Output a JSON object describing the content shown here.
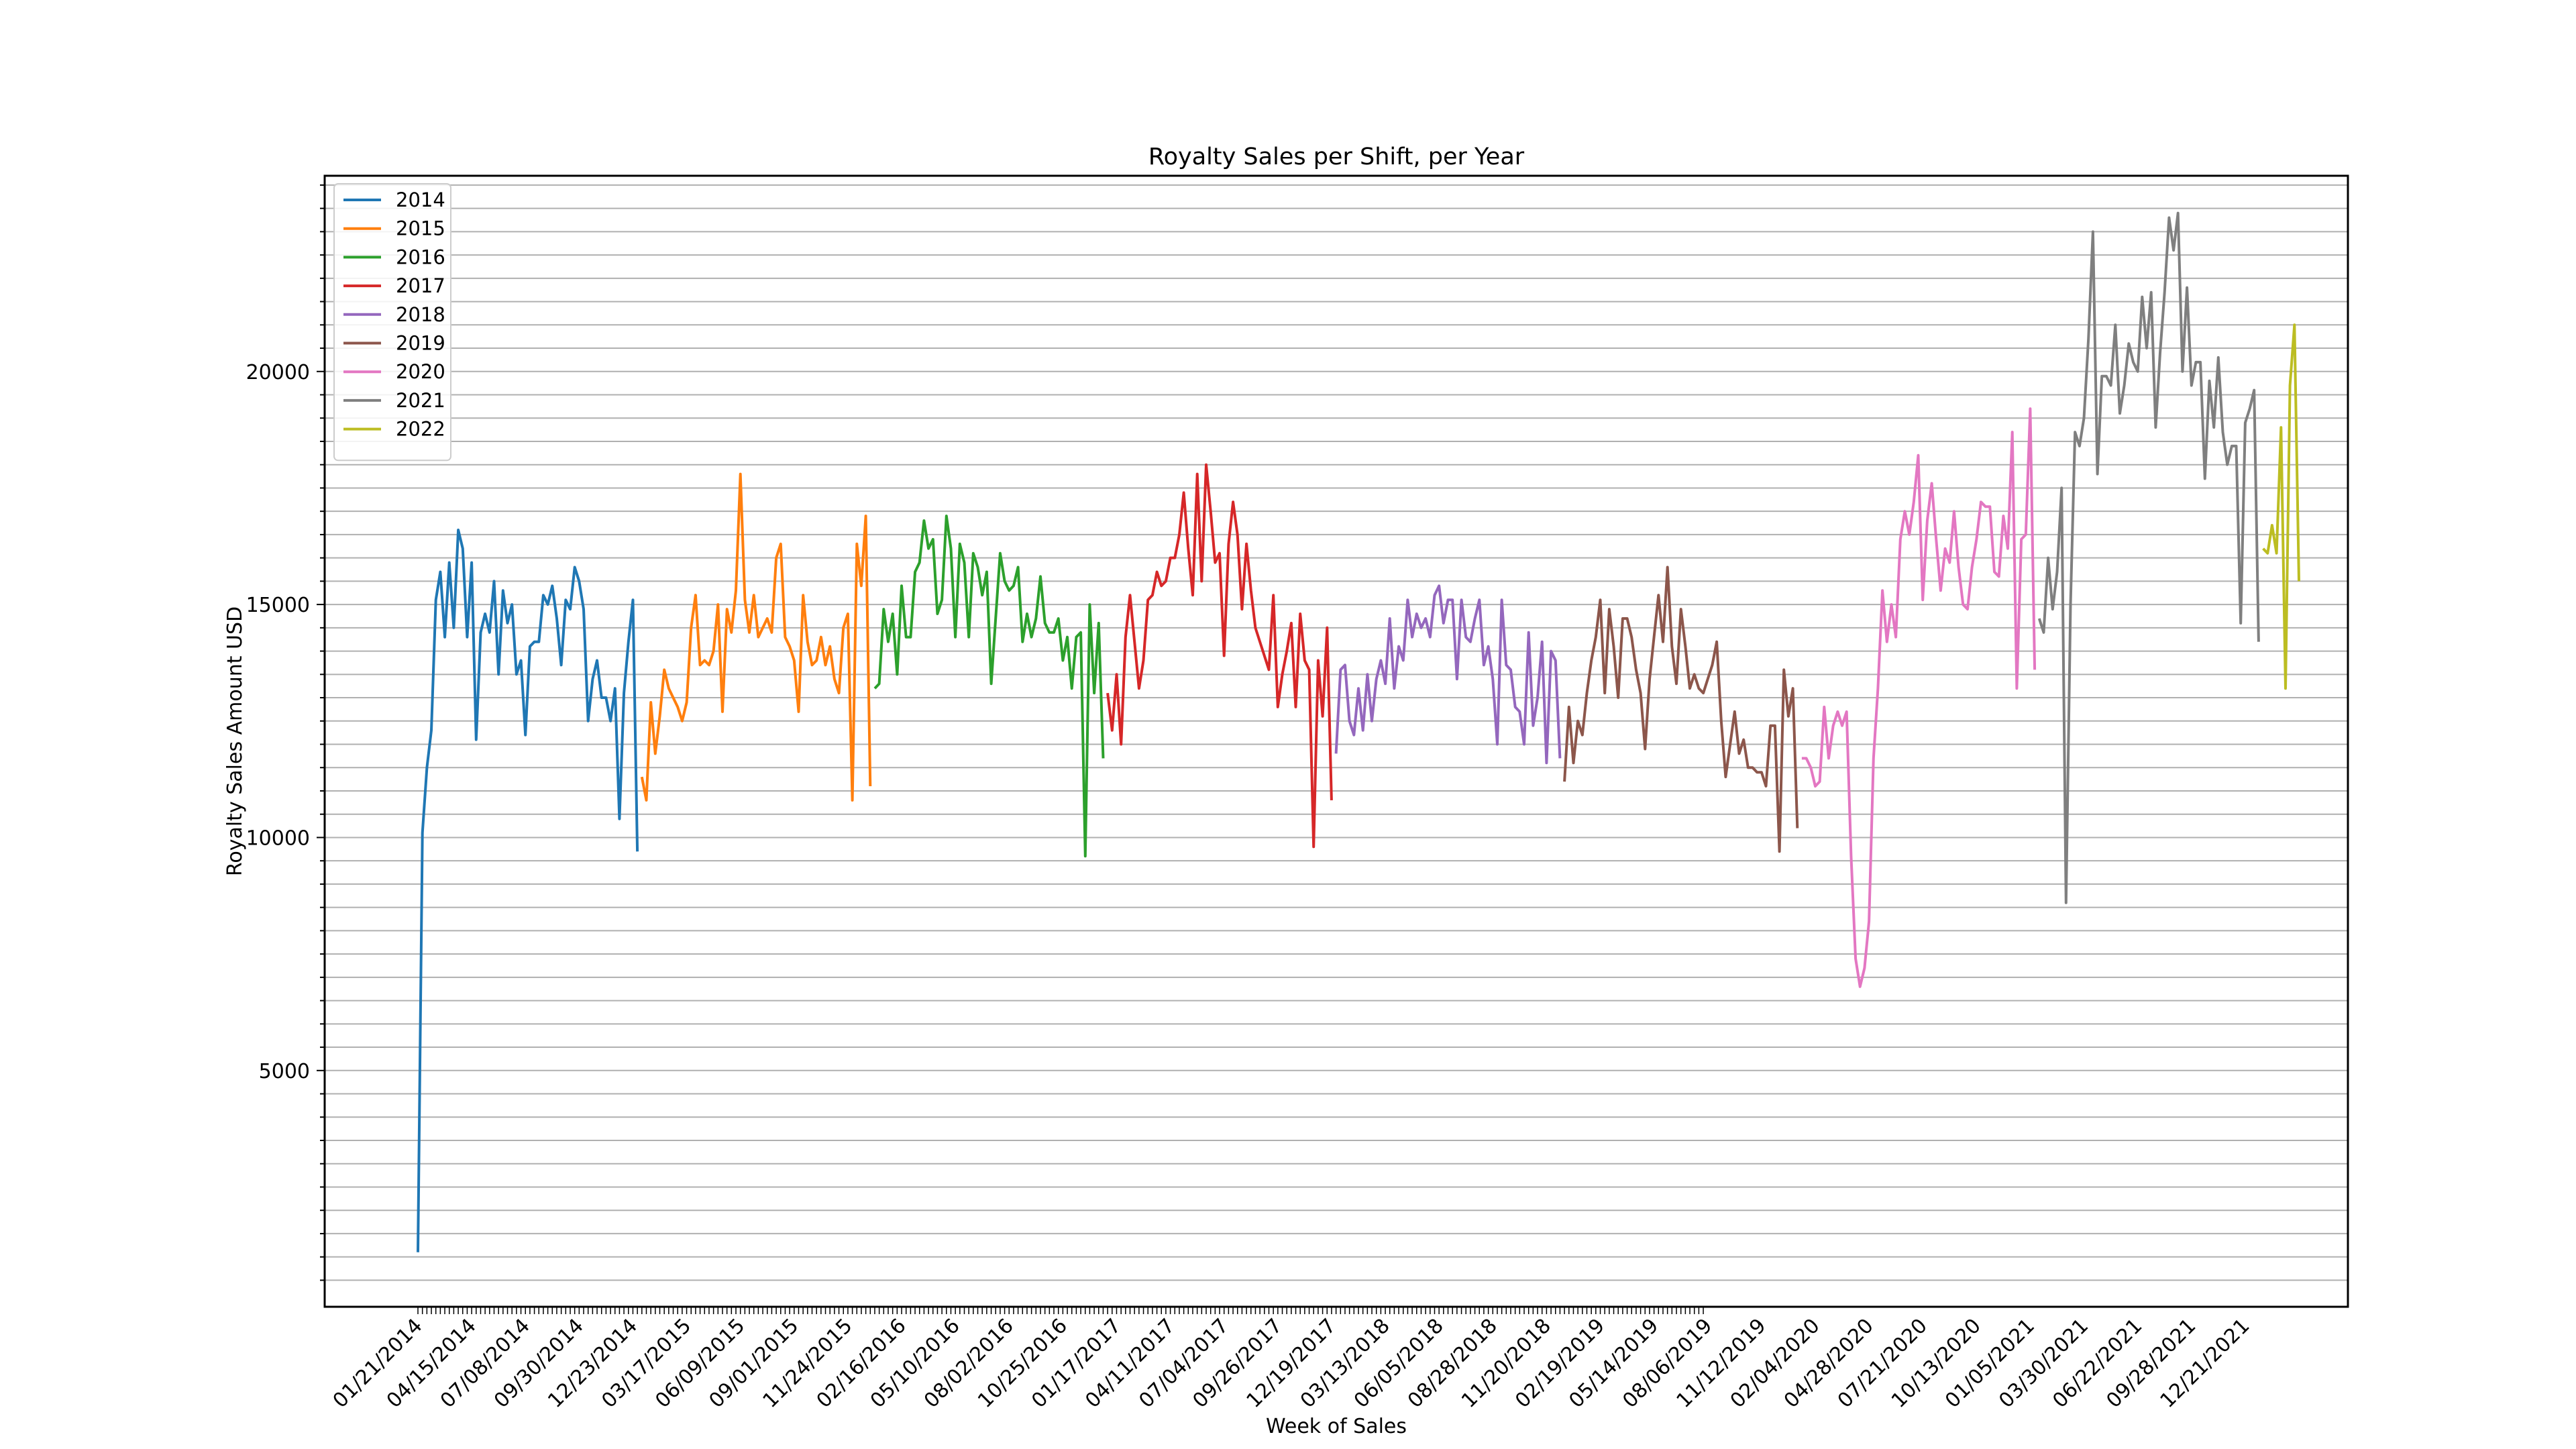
{
  "chart_data": {
    "type": "line",
    "title": "Royalty Sales per Shift, per Year",
    "xlabel": "Week of Sales",
    "ylabel": "Royalty Sales Amount USD",
    "ylim": [
      -70,
      24200
    ],
    "yticks": [
      5000,
      10000,
      15000,
      20000
    ],
    "ytick_labels": [
      "5000",
      "10000",
      "15000",
      "20000"
    ],
    "grid": "horizontal",
    "legend_position": "upper-left",
    "x_tick_labels": [
      "01/21/2014",
      "04/15/2014",
      "07/08/2014",
      "09/30/2014",
      "12/23/2014",
      "03/17/2015",
      "06/09/2015",
      "09/01/2015",
      "11/24/2015",
      "02/16/2016",
      "05/10/2016",
      "08/02/2016",
      "10/25/2016",
      "01/17/2017",
      "04/11/2017",
      "07/04/2017",
      "09/26/2017",
      "12/19/2017",
      "03/13/2018",
      "06/05/2018",
      "08/28/2018",
      "11/20/2018",
      "02/19/2019",
      "05/14/2019",
      "08/06/2019",
      "11/12/2019",
      "02/04/2020",
      "04/28/2020",
      "07/21/2020",
      "10/13/2020",
      "01/05/2021",
      "03/30/2021",
      "06/22/2021",
      "09/28/2021",
      "12/21/2021"
    ],
    "series": [
      {
        "name": "2014",
        "color": "#1f77b4",
        "values": [
          1100,
          10100,
          11500,
          12300,
          15100,
          15700,
          14300,
          15900,
          14500,
          16600,
          16200,
          14300,
          15900,
          12100,
          14400,
          14800,
          14400,
          15500,
          13500,
          15300,
          14600,
          15000,
          13500,
          13800,
          12200,
          14100,
          14200,
          14200,
          15200,
          15000,
          15400,
          14700,
          13700,
          15100,
          14900,
          15800,
          15500,
          14900,
          12500,
          13400,
          13800,
          13000,
          13000,
          12500,
          13200,
          10400,
          13100,
          14200,
          15100,
          9700
        ]
      },
      {
        "name": "2015",
        "color": "#ff7f0e",
        "values": [
          11300,
          10800,
          12900,
          11800,
          12600,
          13600,
          13200,
          13000,
          12800,
          12500,
          12900,
          14500,
          15200,
          13700,
          13800,
          13700,
          14000,
          15000,
          12700,
          14900,
          14400,
          15300,
          17800,
          15100,
          14400,
          15200,
          14300,
          14500,
          14700,
          14400,
          16000,
          16300,
          14300,
          14100,
          13800,
          12700,
          15200,
          14200,
          13700,
          13800,
          14300,
          13700,
          14100,
          13400,
          13100,
          14500,
          14800,
          10800,
          16300,
          15400,
          16900,
          11100
        ]
      },
      {
        "name": "2016",
        "color": "#2ca02c",
        "values": [
          13200,
          13300,
          14900,
          14200,
          14800,
          13500,
          15400,
          14300,
          14300,
          15700,
          15900,
          16800,
          16200,
          16400,
          14800,
          15100,
          16900,
          16200,
          14300,
          16300,
          15900,
          14300,
          16100,
          15800,
          15200,
          15700,
          13300,
          14700,
          16100,
          15500,
          15300,
          15400,
          15800,
          14200,
          14800,
          14300,
          14700,
          15600,
          14600,
          14400,
          14400,
          14700,
          13800,
          14300,
          13200,
          14300,
          14400,
          9600,
          15000,
          13100,
          14600,
          11700
        ]
      },
      {
        "name": "2017",
        "color": "#d62728",
        "values": [
          13100,
          12300,
          13500,
          12000,
          14300,
          15200,
          14200,
          13200,
          13800,
          15100,
          15200,
          15700,
          15400,
          15500,
          16000,
          16000,
          16500,
          17400,
          16200,
          15200,
          17800,
          15500,
          18000,
          17000,
          15900,
          16100,
          13900,
          16300,
          17200,
          16500,
          14900,
          16300,
          15300,
          14500,
          14200,
          13900,
          13600,
          15200,
          12800,
          13500,
          14000,
          14600,
          12800,
          14800,
          13800,
          13600,
          9800,
          13800,
          12600,
          14500,
          10800
        ]
      },
      {
        "name": "2018",
        "color": "#9467bd",
        "values": [
          11800,
          13600,
          13700,
          12500,
          12200,
          13200,
          12300,
          13500,
          12500,
          13400,
          13800,
          13300,
          14700,
          13200,
          14100,
          13800,
          15100,
          14300,
          14800,
          14500,
          14700,
          14300,
          15200,
          15400,
          14600,
          15100,
          15100,
          13400,
          15100,
          14300,
          14200,
          14700,
          15100,
          13700,
          14100,
          13400,
          12000,
          15100,
          13700,
          13600,
          12800,
          12700,
          12000,
          14400,
          12400,
          13000,
          14200,
          11600,
          14000,
          13800,
          11700
        ]
      },
      {
        "name": "2019",
        "color": "#8c564b",
        "values": [
          11200,
          12800,
          11600,
          12500,
          12200,
          13100,
          13800,
          14300,
          15100,
          13100,
          14900,
          14100,
          13000,
          14700,
          14700,
          14300,
          13600,
          13100,
          11900,
          13400,
          14300,
          15200,
          14200,
          15800,
          14100,
          13300,
          14900,
          14100,
          13200,
          13500,
          13200,
          13100,
          13400,
          13700,
          14200,
          12500,
          11300,
          12000,
          12700,
          11800,
          12100,
          11500,
          11500,
          11400,
          11400,
          11100,
          12400,
          12400,
          9700,
          13600,
          12600,
          13200,
          10200
        ]
      },
      {
        "name": "2020",
        "color": "#e377c2",
        "values": [
          11700,
          11700,
          11500,
          11100,
          11200,
          12800,
          11700,
          12400,
          12700,
          12400,
          12700,
          9600,
          7400,
          6800,
          7200,
          8200,
          11700,
          13200,
          15300,
          14200,
          15000,
          14300,
          16400,
          17000,
          16500,
          17200,
          18200,
          15100,
          16800,
          17600,
          16400,
          15300,
          16200,
          15900,
          17000,
          15800,
          15000,
          14900,
          15800,
          16400,
          17200,
          17100,
          17100,
          15700,
          15600,
          16900,
          16200,
          18700,
          13200,
          16400,
          16500,
          19200,
          13600
        ]
      },
      {
        "name": "2021",
        "color": "#7f7f7f",
        "values": [
          14700,
          14400,
          16000,
          14900,
          15700,
          17500,
          8600,
          15000,
          18700,
          18400,
          19000,
          20700,
          23000,
          17800,
          19900,
          19900,
          19700,
          21000,
          19100,
          19700,
          20600,
          20200,
          20000,
          21600,
          20500,
          21700,
          18800,
          20400,
          21700,
          23300,
          22600,
          23400,
          20000,
          21800,
          19700,
          20200,
          20200,
          17700,
          19800,
          18800,
          20300,
          18700,
          18000,
          18400,
          18400,
          14600,
          18900,
          19200,
          19600,
          14200
        ]
      },
      {
        "name": "2022",
        "color": "#bcbd22",
        "values": [
          16200,
          16100,
          16700,
          16100,
          18800,
          13200,
          19700,
          21000,
          15500
        ]
      }
    ]
  }
}
